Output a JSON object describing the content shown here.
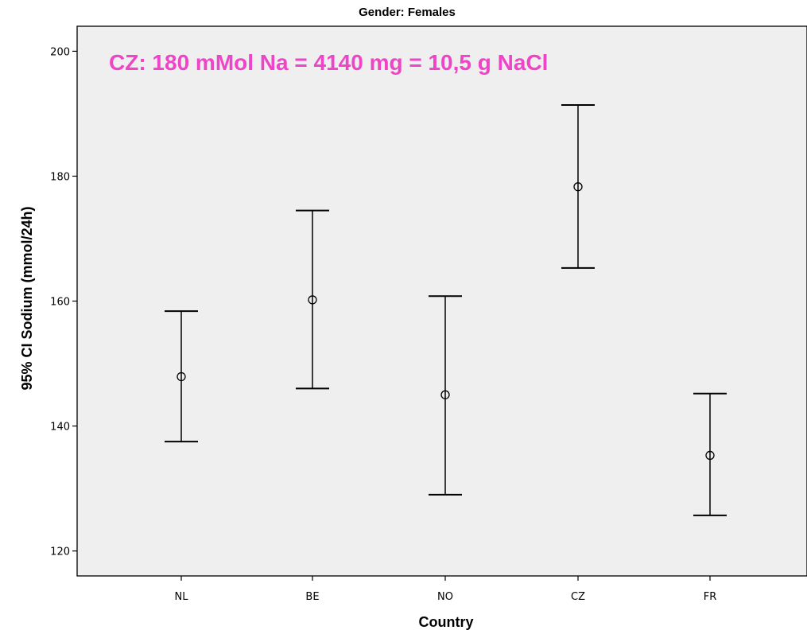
{
  "chart_data": {
    "type": "errorbar",
    "title": "Gender: Females",
    "xlabel": "Country",
    "ylabel": "95% CI Sodium (mmol/24h)",
    "ylim": [
      116,
      204
    ],
    "yticks": [
      120,
      140,
      160,
      180,
      200
    ],
    "categories": [
      "NL",
      "BE",
      "NO",
      "CZ",
      "FR"
    ],
    "series": [
      {
        "mean": [
          147.9,
          160.2,
          145.0,
          178.3,
          135.3
        ],
        "lower": [
          137.5,
          146.0,
          129.0,
          165.3,
          125.7
        ],
        "upper": [
          158.4,
          174.5,
          160.8,
          191.4,
          145.2
        ]
      }
    ],
    "annotation": "CZ: 180 mMol Na = 4140 mg = 10,5 g NaCl",
    "colors": {
      "plot_background": "#efefef",
      "annotation": "#ee44c8",
      "marks": "#000000"
    },
    "grid": false
  }
}
